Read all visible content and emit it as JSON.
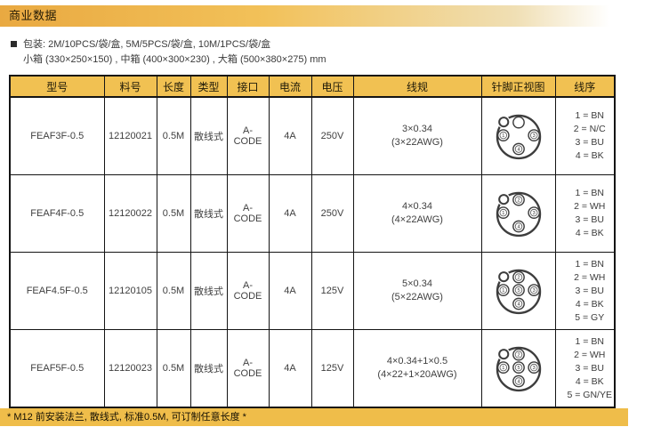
{
  "header": {
    "title": "商业数据"
  },
  "packaging": {
    "line1": "包装: 2M/10PCS/袋/盒, 5M/5PCS/袋/盒, 10M/1PCS/袋/盒",
    "line2": "小箱 (330×250×150) , 中箱 (400×300×230) , 大箱 (500×380×275) mm"
  },
  "table": {
    "columns": [
      "型号",
      "料号",
      "长度",
      "类型",
      "接口",
      "电流",
      "电压",
      "线规",
      "针脚正视图",
      "线序"
    ],
    "rows": [
      {
        "model": "FEAF3F-0.5",
        "part_no": "12120021",
        "length": "0.5M",
        "type": "散线式",
        "interface": "A-CODE",
        "current": "4A",
        "voltage": "250V",
        "wire_gauge_1": "3×0.34",
        "wire_gauge_2": "(3×22AWG)",
        "pins": [
          {
            "pos": "top",
            "label": ""
          },
          {
            "pos": "left",
            "label": "1"
          },
          {
            "pos": "right",
            "label": "3"
          },
          {
            "pos": "bottom",
            "label": "4"
          }
        ],
        "wire_sequence": [
          "1 = BN",
          "2 = N/C",
          "3 = BU",
          "4 = BK"
        ]
      },
      {
        "model": "FEAF4F-0.5",
        "part_no": "12120022",
        "length": "0.5M",
        "type": "散线式",
        "interface": "A-CODE",
        "current": "4A",
        "voltage": "250V",
        "wire_gauge_1": "4×0.34",
        "wire_gauge_2": "(4×22AWG)",
        "pins": [
          {
            "pos": "top",
            "label": "2"
          },
          {
            "pos": "left",
            "label": "1"
          },
          {
            "pos": "right",
            "label": "3"
          },
          {
            "pos": "bottom",
            "label": "4"
          }
        ],
        "wire_sequence": [
          "1 = BN",
          "2 = WH",
          "3 = BU",
          "4 = BK"
        ]
      },
      {
        "model": "FEAF4.5F-0.5",
        "part_no": "12120105",
        "length": "0.5M",
        "type": "散线式",
        "interface": "A-CODE",
        "current": "4A",
        "voltage": "125V",
        "wire_gauge_1": "5×0.34",
        "wire_gauge_2": "(5×22AWG)",
        "pins": [
          {
            "pos": "top",
            "label": "2"
          },
          {
            "pos": "left",
            "label": "1"
          },
          {
            "pos": "center",
            "label": "5"
          },
          {
            "pos": "right",
            "label": "3"
          },
          {
            "pos": "bottom",
            "label": "4"
          }
        ],
        "wire_sequence": [
          "1 = BN",
          "2 = WH",
          "3 = BU",
          "4 = BK",
          "5 = GY"
        ]
      },
      {
        "model": "FEAF5F-0.5",
        "part_no": "12120023",
        "length": "0.5M",
        "type": "散线式",
        "interface": "A-CODE",
        "current": "4A",
        "voltage": "125V",
        "wire_gauge_1": "4×0.34+1×0.5",
        "wire_gauge_2": "(4×22+1×20AWG)",
        "pins": [
          {
            "pos": "top",
            "label": "2"
          },
          {
            "pos": "left",
            "label": "1"
          },
          {
            "pos": "center",
            "label": "5"
          },
          {
            "pos": "right",
            "label": "3"
          },
          {
            "pos": "bottom",
            "label": "4"
          }
        ],
        "wire_sequence": [
          "1 = BN",
          "2 = WH",
          "3 = BU",
          "4 = BK",
          "5 = GN/YE"
        ]
      }
    ]
  },
  "footer": {
    "note": "* M12 前安装法兰, 散线式, 标准0.5M, 可订制任意长度 *"
  },
  "colors": {
    "accent_gold": "#F1C152",
    "footer_gold": "#EFBD4A",
    "title_gradient_start": "#E9A941",
    "title_gradient_end": "#FFFFFF",
    "table_border": "#141414",
    "diagram_stroke": "#3d3d3d"
  }
}
